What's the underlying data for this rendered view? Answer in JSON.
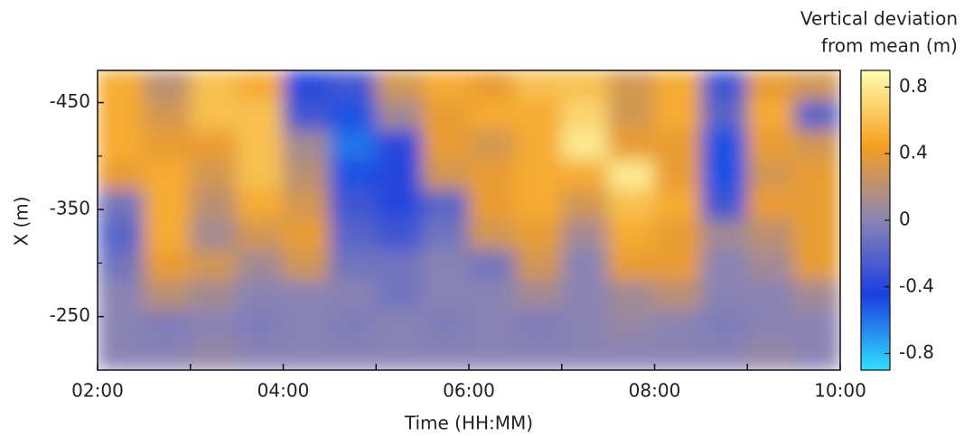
{
  "chart_data": {
    "type": "heatmap",
    "xlabel": "Time (HH:MM)",
    "ylabel": "X (m)",
    "colorbar_label": [
      "Vertical deviation",
      "from mean (m)"
    ],
    "xlim": [
      2,
      10
    ],
    "xticks": [
      {
        "value": 2,
        "label": "02:00"
      },
      {
        "value": 4,
        "label": "04:00"
      },
      {
        "value": 6,
        "label": "06:00"
      },
      {
        "value": 8,
        "label": "08:00"
      },
      {
        "value": 10,
        "label": "10:00"
      }
    ],
    "xminor_ticks": [
      3,
      5,
      7,
      9
    ],
    "ylim": [
      -480,
      -200
    ],
    "yticks": [
      -450,
      -350,
      -250
    ],
    "yminor_ticks": [
      -400,
      -300
    ],
    "clim": [
      -0.9,
      0.9
    ],
    "cticks": [
      0.8,
      0.4,
      0,
      -0.4,
      -0.8
    ],
    "colormap": [
      "#30e0ff",
      "#1a3fe0",
      "#8a84b4",
      "#f5a020",
      "#ffffb0"
    ],
    "x_edges": [
      2,
      2.5,
      3,
      3.5,
      4,
      4.5,
      5,
      5.5,
      6,
      6.5,
      7,
      7.5,
      8,
      8.5,
      9,
      9.5,
      10
    ],
    "y_edges": [
      -480,
      -452,
      -424,
      -396,
      -368,
      -340,
      -312,
      -284,
      -256,
      -228,
      -200
    ],
    "z": [
      [
        0.5,
        0.2,
        0.6,
        0.5,
        -0.4,
        -0.3,
        0.3,
        0.5,
        0.4,
        0.6,
        0.6,
        0.3,
        0.5,
        -0.3,
        0.4,
        0.3
      ],
      [
        0.5,
        0.3,
        0.6,
        0.6,
        -0.3,
        -0.5,
        0.1,
        0.4,
        0.5,
        0.5,
        0.7,
        0.3,
        0.5,
        -0.2,
        0.5,
        -0.2
      ],
      [
        0.5,
        0.4,
        0.4,
        0.6,
        0.1,
        -0.6,
        -0.4,
        0.4,
        0.3,
        0.5,
        0.8,
        0.4,
        0.4,
        -0.5,
        0.4,
        0.3
      ],
      [
        0.4,
        0.5,
        0.3,
        0.6,
        0.2,
        -0.5,
        -0.4,
        0.3,
        0.4,
        0.5,
        0.5,
        0.8,
        0.4,
        -0.5,
        0.3,
        0.4
      ],
      [
        -0.1,
        0.5,
        0.2,
        0.5,
        0.3,
        -0.3,
        -0.4,
        -0.2,
        0.4,
        0.5,
        0.3,
        0.6,
        0.5,
        -0.3,
        0.4,
        0.4
      ],
      [
        -0.2,
        0.5,
        0.1,
        0.3,
        0.4,
        -0.2,
        -0.3,
        -0.1,
        0.3,
        0.4,
        0.1,
        0.5,
        0.4,
        0.1,
        0.2,
        0.4
      ],
      [
        -0.1,
        0.4,
        0.3,
        0.1,
        0.3,
        -0.1,
        -0.1,
        0.0,
        -0.1,
        0.3,
        0.0,
        0.4,
        0.4,
        0.0,
        0.1,
        0.4
      ],
      [
        0.0,
        0.2,
        0.1,
        0.0,
        0.0,
        0.0,
        -0.1,
        0.0,
        0.0,
        0.1,
        0.0,
        0.1,
        0.2,
        0.0,
        0.0,
        0.1
      ],
      [
        0.0,
        -0.05,
        0.0,
        -0.05,
        0.0,
        -0.05,
        0.0,
        -0.05,
        0.0,
        -0.05,
        0.0,
        0.05,
        0.0,
        -0.05,
        0.0,
        0.0
      ],
      [
        0.0,
        0.0,
        0.05,
        0.0,
        0.0,
        0.0,
        0.0,
        0.0,
        0.0,
        0.0,
        0.0,
        0.0,
        0.0,
        0.0,
        0.05,
        0.0
      ]
    ]
  }
}
